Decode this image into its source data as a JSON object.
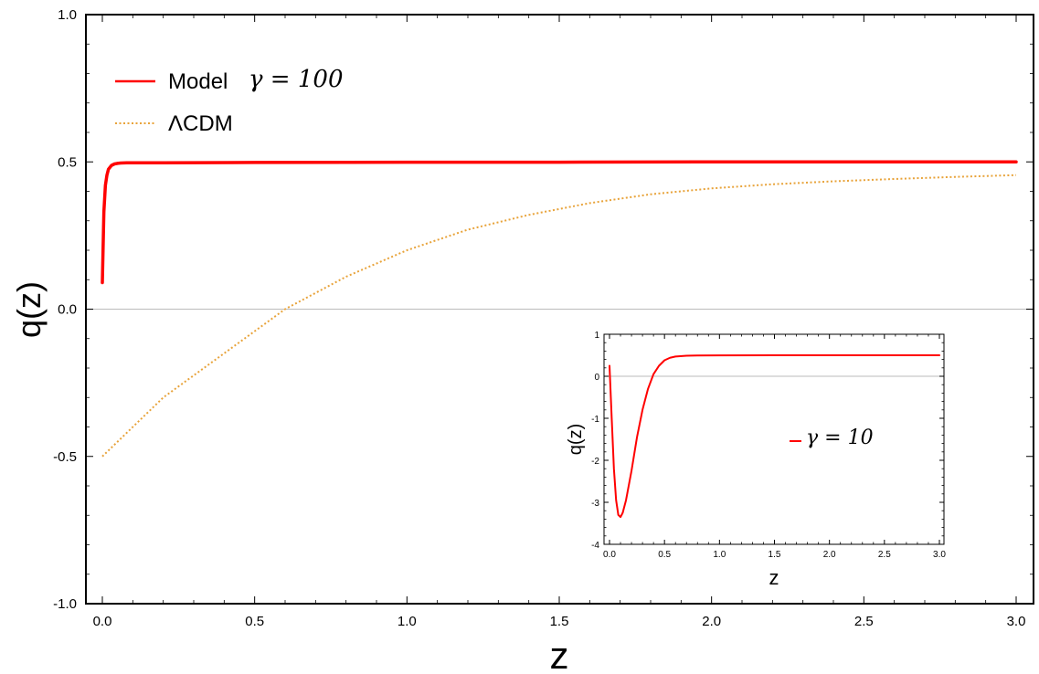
{
  "chart_data": [
    {
      "type": "line",
      "xlabel": "z",
      "ylabel": "q(z)",
      "xlim": [
        0,
        3
      ],
      "ylim": [
        -1,
        1
      ],
      "xticks": [
        "0.0",
        "0.5",
        "1.0",
        "1.5",
        "2.0",
        "2.5",
        "3.0"
      ],
      "yticks": [
        "1.0",
        "0.5",
        "0.0",
        "-0.5",
        "-1.0"
      ],
      "grid": false,
      "reference_line_y": 0,
      "legend_placement": "top-left",
      "series": [
        {
          "name": "Model",
          "legend_math": "γ = 100",
          "color": "#ff0000",
          "style": "solid",
          "x": [
            0.0,
            0.005,
            0.01,
            0.015,
            0.02,
            0.03,
            0.04,
            0.05,
            0.06,
            0.08,
            0.1,
            0.2,
            0.5,
            1.0,
            1.5,
            2.0,
            2.5,
            3.0
          ],
          "y": [
            0.09,
            0.33,
            0.42,
            0.455,
            0.475,
            0.488,
            0.493,
            0.495,
            0.496,
            0.497,
            0.497,
            0.497,
            0.498,
            0.499,
            0.499,
            0.5,
            0.5,
            0.5
          ]
        },
        {
          "name": "ΛCDM",
          "color": "#e8a33a",
          "style": "dotted",
          "x": [
            0.0,
            0.2,
            0.4,
            0.6,
            0.8,
            1.0,
            1.2,
            1.4,
            1.6,
            1.8,
            2.0,
            2.2,
            2.4,
            2.6,
            2.8,
            3.0
          ],
          "y": [
            -0.5,
            -0.3,
            -0.15,
            0.0,
            0.11,
            0.2,
            0.27,
            0.32,
            0.36,
            0.39,
            0.41,
            0.424,
            0.434,
            0.442,
            0.449,
            0.455
          ]
        }
      ]
    },
    {
      "type": "line",
      "placement": "inset",
      "xlabel": "z",
      "ylabel": "q(z)",
      "xlim": [
        0,
        3
      ],
      "ylim": [
        -4,
        1
      ],
      "xticks": [
        "0.0",
        "0.5",
        "1.0",
        "1.5",
        "2.0",
        "2.5",
        "3.0"
      ],
      "yticks": [
        "1",
        "0",
        "-1",
        "-2",
        "-3",
        "-4"
      ],
      "reference_line_y": 0,
      "series": [
        {
          "legend_math": "γ = 10",
          "color": "#ff0000",
          "style": "solid",
          "x": [
            0.0,
            0.02,
            0.04,
            0.06,
            0.08,
            0.1,
            0.12,
            0.15,
            0.2,
            0.25,
            0.3,
            0.35,
            0.4,
            0.45,
            0.5,
            0.55,
            0.6,
            0.7,
            0.8,
            1.0,
            1.5,
            2.0,
            2.5,
            3.0
          ],
          "y": [
            0.25,
            -1.0,
            -2.2,
            -2.95,
            -3.3,
            -3.35,
            -3.25,
            -2.95,
            -2.25,
            -1.45,
            -0.8,
            -0.3,
            0.05,
            0.25,
            0.38,
            0.44,
            0.47,
            0.49,
            0.495,
            0.497,
            0.5,
            0.5,
            0.5,
            0.5
          ]
        }
      ]
    }
  ],
  "legend": {
    "model_label": "Model",
    "model_math": "γ = 100",
    "lcdm_label": "ΛCDM"
  },
  "inset_legend": {
    "math": "γ = 10"
  }
}
